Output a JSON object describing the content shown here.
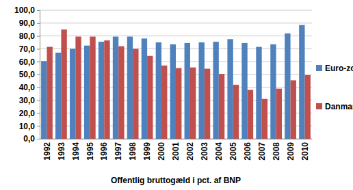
{
  "chart_data": {
    "type": "bar",
    "xlabel": "Offentlig bruttogæld i pct. af BNP",
    "categories": [
      "1992",
      "1993",
      "1994",
      "1995",
      "1996",
      "1997",
      "1998",
      "1999",
      "2000",
      "2001",
      "2002",
      "2003",
      "2004",
      "2005",
      "2006",
      "2007",
      "2008",
      "2009",
      "2010"
    ],
    "series": [
      {
        "name": "Euro-zonen",
        "color": "#4f81bd",
        "values": [
          60.5,
          67,
          70,
          72.5,
          75.5,
          79.5,
          79.5,
          78,
          75,
          73.5,
          74.5,
          75,
          75.5,
          77.5,
          74.5,
          71.5,
          73.5,
          82,
          88.5
        ]
      },
      {
        "name": "Danmark",
        "color": "#c0504d",
        "values": [
          71.5,
          85,
          79.5,
          79.5,
          76.5,
          72,
          70,
          64.5,
          57,
          55,
          55.5,
          54.5,
          50.5,
          42,
          38,
          31,
          39,
          45.5,
          49.5
        ]
      }
    ],
    "ylim": [
      0,
      100
    ],
    "yticks": [
      {
        "value": 0,
        "label": "0,0"
      },
      {
        "value": 10,
        "label": "10,0"
      },
      {
        "value": 20,
        "label": "20,0"
      },
      {
        "value": 30,
        "label": "30,0"
      },
      {
        "value": 40,
        "label": "40,0"
      },
      {
        "value": 50,
        "label": "50,0"
      },
      {
        "value": 60,
        "label": "60,0"
      },
      {
        "value": 70,
        "label": "70,0"
      },
      {
        "value": 80,
        "label": "80,0"
      },
      {
        "value": 90,
        "label": "90,0"
      },
      {
        "value": 100,
        "label": "100,0"
      }
    ],
    "grid": true,
    "legend": "right"
  }
}
